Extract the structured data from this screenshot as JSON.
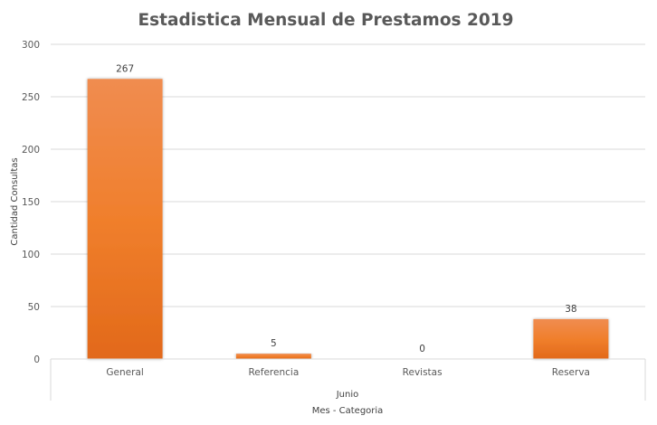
{
  "chart_data": {
    "type": "bar",
    "title": "Estadistica Mensual de Prestamos 2019",
    "xlabel": "Mes - Categoria",
    "ylabel": "Cantidad Consultas",
    "group_label": "Junio",
    "categories": [
      "General",
      "Referencia",
      "Revistas",
      "Reserva"
    ],
    "values": [
      267,
      5,
      0,
      38
    ],
    "data_labels": [
      "267",
      "5",
      "0",
      "38"
    ],
    "ylim": [
      0,
      300
    ],
    "yticks": [
      0,
      50,
      100,
      150,
      200,
      250,
      300
    ],
    "ytick_labels": [
      "0",
      "50",
      "100",
      "150",
      "200",
      "250",
      "300"
    ],
    "grid": true,
    "legend": "none",
    "colors": {
      "bar_top": "#F08C50",
      "bar_mid": "#F07F2C",
      "bar_bottom": "#E2691A",
      "grid": "#D9D9D9"
    }
  }
}
